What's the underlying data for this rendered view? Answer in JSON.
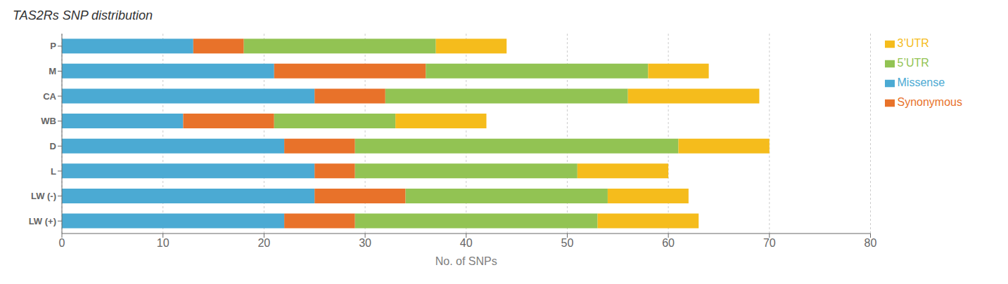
{
  "chart_data": {
    "type": "bar",
    "orientation": "horizontal",
    "stacked": true,
    "title": "TAS2Rs SNP distribution",
    "xlabel": "No. of SNPs",
    "categories": [
      "P",
      "M",
      "CA",
      "WB",
      "D",
      "L",
      "LW (-)",
      "LW (+)"
    ],
    "series": [
      {
        "name": "Missense",
        "color": "#4baad3",
        "values": [
          13,
          21,
          25,
          12,
          22,
          25,
          25,
          22
        ]
      },
      {
        "name": "Synonymous",
        "color": "#e8722a",
        "values": [
          5,
          15,
          7,
          9,
          7,
          4,
          9,
          7
        ]
      },
      {
        "name": "5’UTR",
        "color": "#92c353",
        "values": [
          19,
          22,
          24,
          12,
          32,
          22,
          20,
          24
        ]
      },
      {
        "name": "3’UTR",
        "color": "#f5bc1c",
        "values": [
          7,
          6,
          13,
          9,
          9,
          9,
          8,
          10
        ]
      }
    ],
    "xlim": [
      0,
      80
    ],
    "xticks": [
      0,
      10,
      20,
      30,
      40,
      50,
      60,
      70,
      80
    ],
    "grid": true,
    "legend": "upper right"
  }
}
